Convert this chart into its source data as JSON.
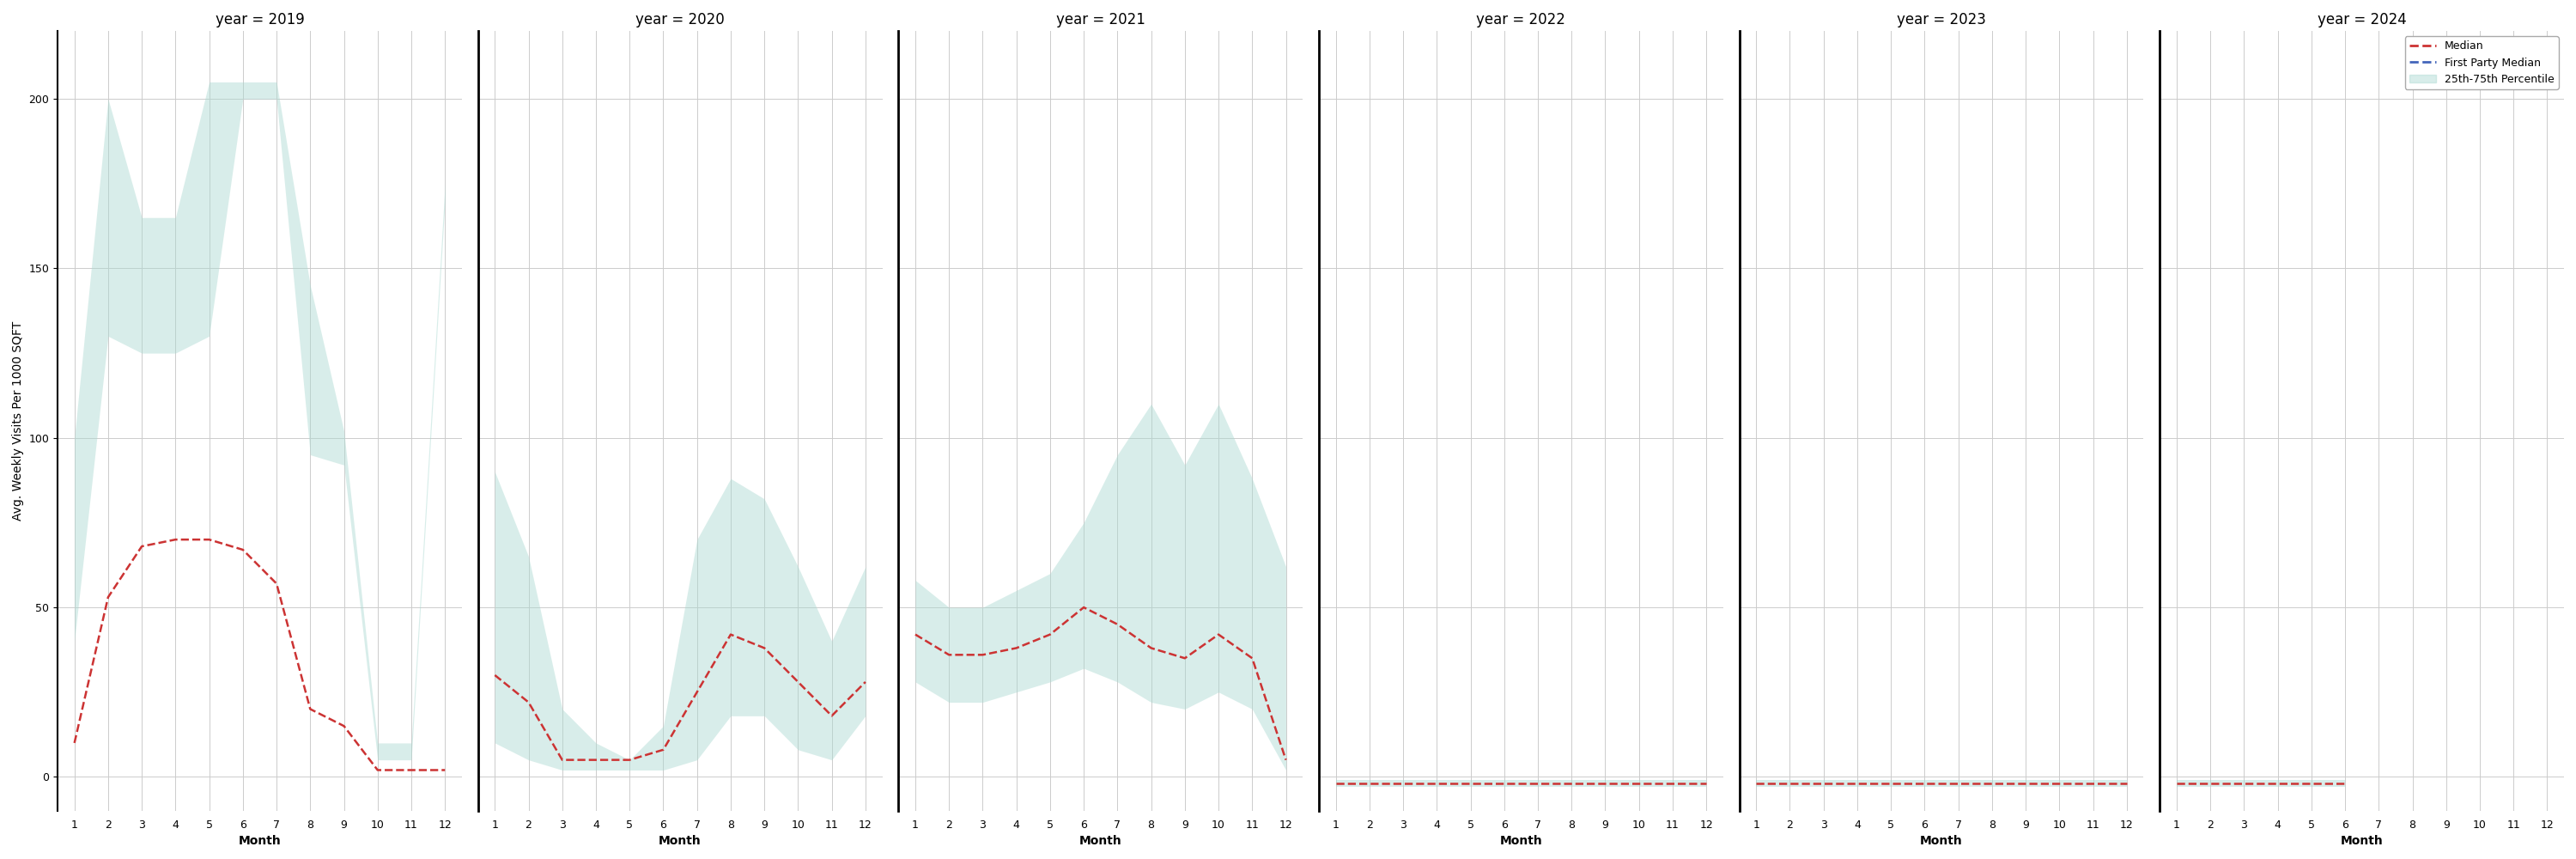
{
  "years": [
    2019,
    2020,
    2021,
    2022,
    2023,
    2024
  ],
  "months": [
    1,
    2,
    3,
    4,
    5,
    6,
    7,
    8,
    9,
    10,
    11,
    12
  ],
  "median": {
    "2019": [
      10,
      53,
      68,
      70,
      70,
      67,
      57,
      20,
      15,
      2,
      2,
      2
    ],
    "2020": [
      30,
      22,
      5,
      5,
      5,
      8,
      25,
      42,
      38,
      28,
      18,
      28
    ],
    "2021": [
      42,
      36,
      36,
      38,
      42,
      50,
      45,
      38,
      35,
      42,
      35,
      5
    ],
    "2022": [
      -2,
      -2,
      -2,
      -2,
      -2,
      -2,
      -2,
      -2,
      -2,
      -2,
      -2,
      -2
    ],
    "2023": [
      -2,
      -2,
      -2,
      -2,
      -2,
      -2,
      -2,
      -2,
      -2,
      -2,
      -2,
      -2
    ],
    "2024": [
      -2,
      -2,
      -2,
      -2,
      -2,
      -2,
      null,
      null,
      null,
      null,
      null,
      null
    ]
  },
  "p25": {
    "2019": [
      40,
      130,
      125,
      125,
      130,
      200,
      200,
      95,
      92,
      5,
      5,
      170
    ],
    "2020": [
      10,
      5,
      2,
      2,
      2,
      2,
      5,
      18,
      18,
      8,
      5,
      18
    ],
    "2021": [
      28,
      22,
      22,
      25,
      28,
      32,
      28,
      22,
      20,
      25,
      20,
      2
    ],
    "2022": [
      -3,
      -3,
      -3,
      -3,
      -3,
      -3,
      -3,
      -3,
      -3,
      -3,
      -3,
      -3
    ],
    "2023": [
      -3,
      -3,
      -3,
      -3,
      -3,
      -3,
      -3,
      -3,
      -3,
      -3,
      -3,
      -3
    ],
    "2024": [
      -3,
      -3,
      -3,
      -3,
      -3,
      -3,
      null,
      null,
      null,
      null,
      null,
      null
    ]
  },
  "p75": {
    "2019": [
      100,
      200,
      165,
      165,
      205,
      205,
      205,
      145,
      102,
      10,
      10,
      175
    ],
    "2020": [
      90,
      65,
      20,
      10,
      5,
      15,
      70,
      88,
      82,
      62,
      40,
      62
    ],
    "2021": [
      58,
      50,
      50,
      55,
      60,
      75,
      95,
      110,
      92,
      110,
      88,
      62
    ],
    "2022": [
      -1,
      -1,
      -1,
      -1,
      -1,
      -1,
      -1,
      -1,
      -1,
      -1,
      -1,
      -1
    ],
    "2023": [
      -1,
      -1,
      -1,
      -1,
      -1,
      -1,
      -1,
      -1,
      -1,
      -1,
      -1,
      -1
    ],
    "2024": [
      -1,
      -1,
      -1,
      -1,
      -1,
      -1,
      null,
      null,
      null,
      null,
      null,
      null
    ]
  },
  "fill_color": "#aad9d1",
  "fill_alpha": 0.45,
  "median_color": "#cc3333",
  "fp_color": "#4466bb",
  "ylabel": "Avg. Weekly Visits Per 1000 SQFT",
  "xlabel": "Month",
  "ylim": [
    -10,
    220
  ],
  "yticks": [
    0,
    50,
    100,
    150,
    200
  ],
  "background_color": "#ffffff",
  "grid_color": "#cccccc",
  "title_fontsize": 12,
  "label_fontsize": 10,
  "tick_fontsize": 9,
  "legend_fontsize": 9
}
